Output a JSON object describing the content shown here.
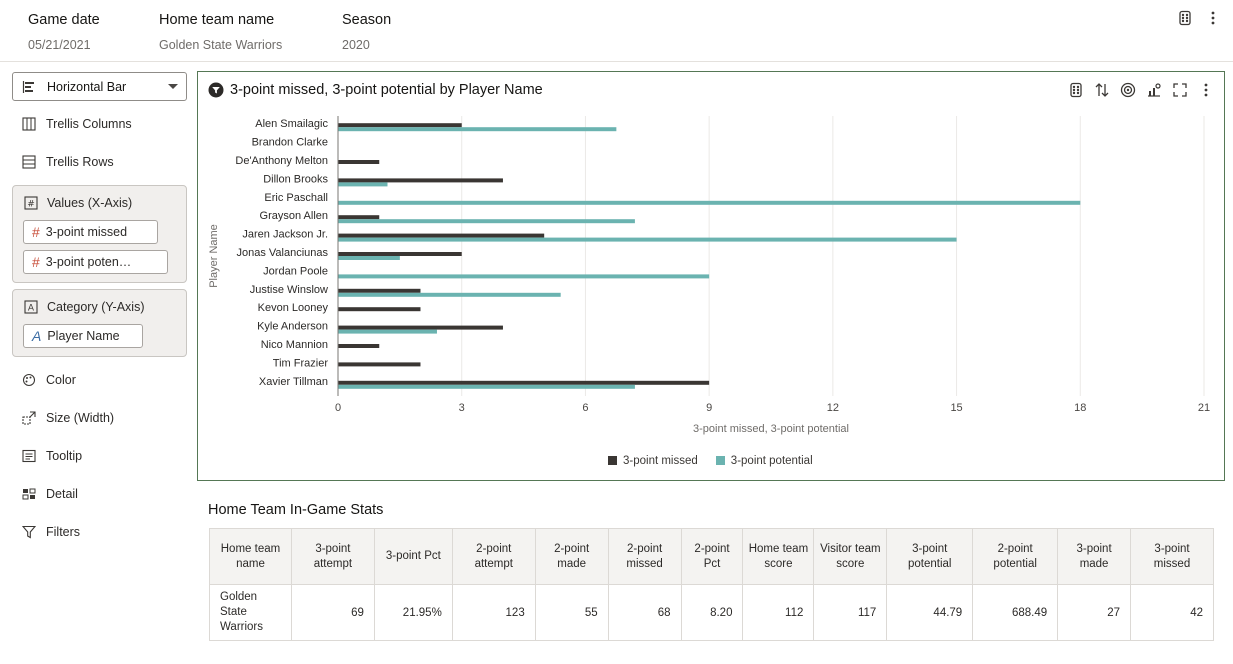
{
  "header": {
    "fields": [
      {
        "label": "Game date",
        "value": "05/21/2021"
      },
      {
        "label": "Home team name",
        "value": "Golden State Warriors"
      },
      {
        "label": "Season",
        "value": "2020"
      }
    ]
  },
  "panel": {
    "viz_type": "Horizontal Bar",
    "trellis_columns": "Trellis Columns",
    "trellis_rows": "Trellis Rows",
    "values_label": "Values (X-Axis)",
    "values_pills": [
      "3-point missed",
      "3-point poten…"
    ],
    "category_label": "Category (Y-Axis)",
    "category_pill": "Player Name",
    "color": "Color",
    "size": "Size (Width)",
    "tooltip": "Tooltip",
    "detail": "Detail",
    "filters": "Filters"
  },
  "chart": {
    "title": "3-point missed, 3-point potential by Player Name"
  },
  "chart_data": {
    "type": "bar",
    "orientation": "horizontal",
    "title": "3-point missed, 3-point potential by Player Name",
    "xlabel": "3-point missed, 3-point potential",
    "ylabel": "Player Name",
    "xlim": [
      0,
      21
    ],
    "xticks": [
      0,
      3,
      6,
      9,
      12,
      15,
      18,
      21
    ],
    "grid": true,
    "legend_position": "bottom",
    "categories": [
      "Alen Smailagic",
      "Brandon Clarke",
      "De'Anthony Melton",
      "Dillon Brooks",
      "Eric Paschall",
      "Grayson Allen",
      "Jaren Jackson Jr.",
      "Jonas Valanciunas",
      "Jordan Poole",
      "Justise Winslow",
      "Kevon Looney",
      "Kyle Anderson",
      "Nico Mannion",
      "Tim Frazier",
      "Xavier Tillman"
    ],
    "series": [
      {
        "name": "3-point missed",
        "color": "#3a3633",
        "values": [
          3,
          0,
          1,
          4,
          0,
          1,
          5,
          3,
          0,
          2,
          2,
          4,
          1,
          2,
          9
        ]
      },
      {
        "name": "3-point potential",
        "color": "#6bb3b0",
        "values": [
          6.75,
          0,
          0,
          1.2,
          18,
          7.2,
          15,
          1.5,
          9,
          5.4,
          0,
          2.4,
          0,
          0,
          7.2
        ]
      }
    ]
  },
  "table": {
    "title": "Home Team In-Game Stats",
    "columns": [
      "Home team name",
      "3-point attempt",
      "3-point Pct",
      "2-point attempt",
      "2-point made",
      "2-point missed",
      "2-point Pct",
      "Home team score",
      "Visitor team score",
      "3-point potential",
      "2-point potential",
      "3-point made",
      "3-point missed"
    ],
    "rows": [
      [
        "Golden State Warriors",
        "69",
        "21.95%",
        "123",
        "55",
        "68",
        "8.20",
        "112",
        "117",
        "44.79",
        "688.49",
        "27",
        "42"
      ]
    ]
  }
}
